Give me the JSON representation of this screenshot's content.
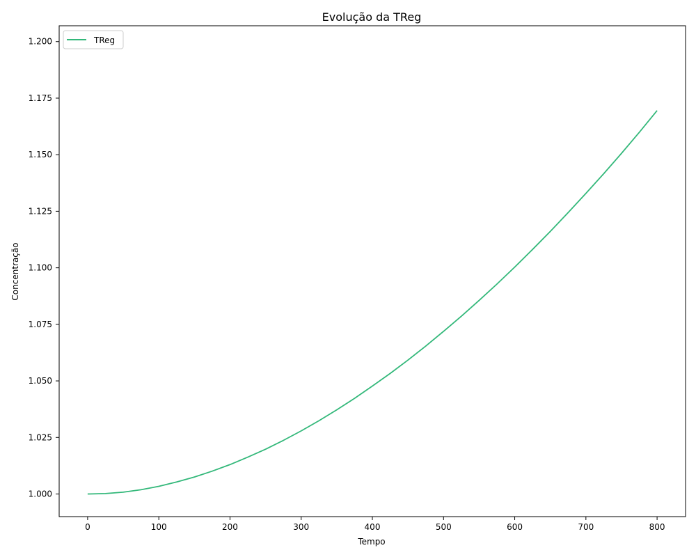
{
  "chart_data": {
    "type": "line",
    "title": "Evolução da TReg",
    "xlabel": "Tempo",
    "ylabel": "Concentração",
    "xlim": [
      -40,
      840
    ],
    "ylim": [
      0.99,
      1.207
    ],
    "xticks": [
      0,
      100,
      200,
      300,
      400,
      500,
      600,
      700,
      800
    ],
    "xtick_labels": [
      "0",
      "100",
      "200",
      "300",
      "400",
      "500",
      "600",
      "700",
      "800"
    ],
    "yticks": [
      1.0,
      1.025,
      1.05,
      1.075,
      1.1,
      1.125,
      1.15,
      1.175,
      1.2
    ],
    "ytick_labels": [
      "1.000",
      "1.025",
      "1.050",
      "1.075",
      "1.100",
      "1.125",
      "1.150",
      "1.175",
      "1.200"
    ],
    "grid": false,
    "legend_position": "upper-left",
    "series": [
      {
        "name": "TReg",
        "color": "#33b87a",
        "x": [
          0,
          25,
          50,
          75,
          100,
          125,
          150,
          175,
          200,
          225,
          250,
          275,
          300,
          325,
          350,
          375,
          400,
          425,
          450,
          475,
          500,
          525,
          550,
          575,
          600,
          625,
          650,
          675,
          700,
          725,
          750,
          775,
          800
        ],
        "y": [
          1.0,
          1.0002,
          1.0008,
          1.0019,
          1.0034,
          1.0053,
          1.0075,
          1.0101,
          1.013,
          1.0163,
          1.0198,
          1.0237,
          1.0279,
          1.0324,
          1.0372,
          1.0423,
          1.0477,
          1.0533,
          1.0592,
          1.0654,
          1.0719,
          1.0786,
          1.0856,
          1.0928,
          1.1003,
          1.1081,
          1.1161,
          1.1244,
          1.1329,
          1.1416,
          1.1506,
          1.1599,
          1.1695
        ]
      }
    ]
  }
}
